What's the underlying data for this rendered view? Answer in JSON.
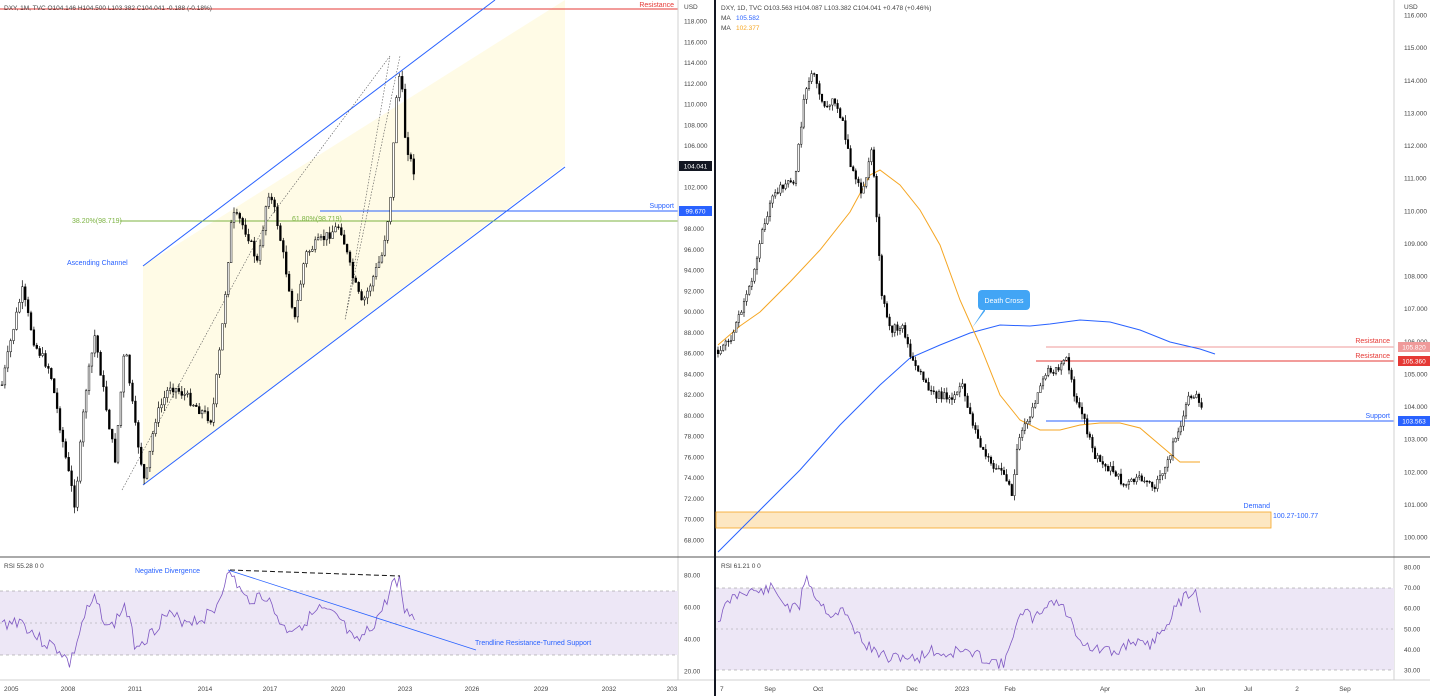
{
  "left": {
    "ohlc_header": "DXY, 1M, TVC  O104.146  H104.500  L103.382  C104.041  -0.188 (-0.18%)",
    "currency_label": "USD",
    "price_ticks": [
      "118.000",
      "116.000",
      "114.000",
      "112.000",
      "110.000",
      "108.000",
      "106.000",
      "104.000",
      "102.000",
      "100.000",
      "98.000",
      "96.000",
      "94.000",
      "92.000",
      "90.000",
      "88.000",
      "86.000",
      "84.000",
      "82.000",
      "80.000",
      "78.000",
      "76.000",
      "74.000",
      "72.000",
      "70.000",
      "68.000"
    ],
    "price_tick_values": [
      118,
      116,
      114,
      112,
      110,
      108,
      106,
      104,
      102,
      100,
      98,
      96,
      94,
      92,
      90,
      88,
      86,
      84,
      82,
      80,
      78,
      76,
      74,
      72,
      70,
      68
    ],
    "date_labels": [
      "2005",
      "2008",
      "2011",
      "2014",
      "2017",
      "2020",
      "2023",
      "2026",
      "2029",
      "2032",
      "203"
    ],
    "last_price_badge": "104.041",
    "support_badge": "99.670",
    "resistance_label": "Resistance",
    "support_label": "Support",
    "fib_382_label": "38.20%(98.719)",
    "fib_618_label": "61.80%(98.719)",
    "channel_label": "Ascending Channel",
    "rsi_header": "RSI  55.28  0  0",
    "rsi_ticks": [
      "80.00",
      "60.00",
      "40.00",
      "20.00"
    ],
    "rsi_tick_values": [
      80,
      60,
      40,
      20
    ],
    "negative_divergence_label": "Negative Divergence",
    "trendline_label": "Trendline Resistance-Turned Support"
  },
  "right": {
    "ohlc_header": "DXY, 1D, TVC  O103.563  H104.087  L103.382  C104.041  +0.478 (+0.46%)",
    "ma1_label": "MA",
    "ma1_value": "105.582",
    "ma2_label": "MA",
    "ma2_value": "102.377",
    "currency_label": "USD",
    "price_ticks": [
      "116.000",
      "115.000",
      "114.000",
      "113.000",
      "112.000",
      "111.000",
      "110.000",
      "109.000",
      "108.000",
      "107.000",
      "106.000",
      "105.000",
      "104.000",
      "103.000",
      "102.000",
      "101.000",
      "100.000"
    ],
    "price_tick_values": [
      116,
      115,
      114,
      113,
      112,
      111,
      110,
      109,
      108,
      107,
      106,
      105,
      104,
      103,
      102,
      101,
      100
    ],
    "date_labels": [
      "7",
      "Sep",
      "Oct",
      "Dec",
      "2023",
      "Feb",
      "Apr",
      "Jun",
      "Jul",
      "2",
      "Sep"
    ],
    "resistance1_label": "Resistance",
    "resistance1_badge": "105.820",
    "resistance2_label": "Resistance",
    "resistance2_badge": "105.360",
    "support_label": "Support",
    "support_badge": "103.563",
    "death_cross_label": "Death Cross",
    "demand_label": "Demand",
    "demand_range_label": "100.27-100.77",
    "rsi_header": "RSI  61.21  0  0",
    "rsi_ticks": [
      "80.00",
      "70.00",
      "60.00",
      "50.00",
      "40.00",
      "30.00"
    ],
    "rsi_tick_values": [
      80,
      70,
      60,
      50,
      40,
      30
    ]
  },
  "colors": {
    "up": "#000000",
    "down": "#000000",
    "channel": "#2962ff",
    "resistance": "#e53935",
    "support": "#2962ff",
    "fib": "#7cb342",
    "ma_fast": "#f5a623",
    "ma_slow": "#2962ff",
    "rsi": "#7e57c2",
    "rsi_band": "#ede7f6",
    "channel_fill": "#fffbe6",
    "demand_fill": "#fde7c2"
  },
  "chart_data": [
    {
      "type": "candlestick",
      "title": "DXY, 1M, TVC",
      "ylabel": "USD",
      "ylim": [
        67,
        119
      ],
      "x": [
        "2005",
        "2006",
        "2007",
        "2008",
        "2009",
        "2010",
        "2011",
        "2012",
        "2013",
        "2014",
        "2015",
        "2016",
        "2017",
        "2018",
        "2019",
        "2020",
        "2021",
        "2022",
        "2023"
      ],
      "close": [
        89.0,
        84.0,
        77.0,
        82.0,
        77.0,
        79.0,
        80.0,
        80.0,
        80.0,
        90.0,
        98.0,
        102.0,
        92.0,
        96.0,
        96.0,
        90.0,
        96.0,
        104.0,
        104.041
      ],
      "levels": {
        "resistance": 118.1,
        "support": 99.67,
        "fib_38_2": 98.719
      },
      "ohlc_last": {
        "open": 104.146,
        "high": 104.5,
        "low": 103.382,
        "close": 104.041
      }
    },
    {
      "type": "line",
      "title": "RSI",
      "x": [
        "2005",
        "2008",
        "2011",
        "2014",
        "2017",
        "2020",
        "2023"
      ],
      "values": [
        55,
        33,
        45,
        78,
        50,
        40,
        55.28
      ],
      "ylim": [
        20,
        85
      ]
    },
    {
      "type": "candlestick",
      "title": "DXY, 1D, TVC",
      "ylabel": "USD",
      "ylim": [
        99.6,
        116.2
      ],
      "x": [
        "Aug 2022",
        "Sep",
        "Oct",
        "Nov",
        "Dec",
        "2023",
        "Feb",
        "Mar",
        "Apr",
        "May",
        "Jun"
      ],
      "close": [
        105.0,
        109.5,
        112.5,
        111.0,
        105.0,
        103.5,
        101.2,
        105.0,
        102.0,
        101.3,
        104.041
      ],
      "series": [
        {
          "name": "MA",
          "last": 105.582
        },
        {
          "name": "MA",
          "last": 102.377
        }
      ],
      "levels": {
        "resistance_1": 105.82,
        "resistance_2": 105.36,
        "support": 103.563,
        "demand_zone": [
          100.27,
          100.77
        ]
      }
    },
    {
      "type": "line",
      "title": "RSI",
      "x": [
        "Aug",
        "Sep",
        "Oct",
        "Dec",
        "2023",
        "Feb",
        "Apr",
        "Jun"
      ],
      "values": [
        58,
        72,
        65,
        38,
        36,
        62,
        42,
        61.21
      ],
      "ylim": [
        27,
        84
      ]
    }
  ]
}
